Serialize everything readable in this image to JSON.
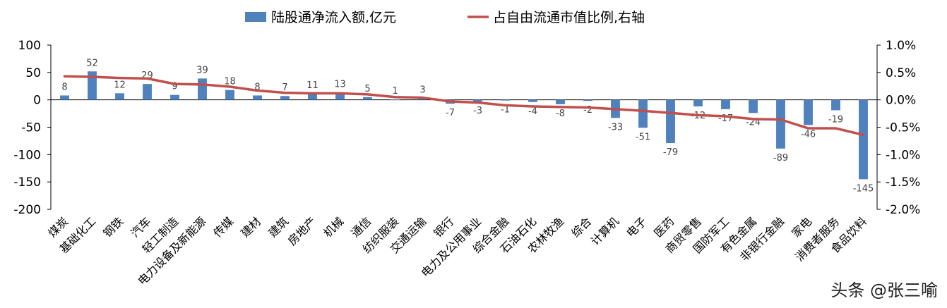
{
  "chart_data": {
    "type": "bar",
    "categories": [
      "煤炭",
      "基础化工",
      "钢铁",
      "汽车",
      "轻工制造",
      "电力设备及新能源",
      "传媒",
      "建材",
      "建筑",
      "房地产",
      "机械",
      "通信",
      "纺织服装",
      "交通运输",
      "银行",
      "电力及公用事业",
      "综合金融",
      "石油石化",
      "农林牧渔",
      "综合",
      "计算机",
      "电子",
      "医药",
      "商贸零售",
      "国防军工",
      "有色金属",
      "非银行金融",
      "家电",
      "消费者服务",
      "食品饮料"
    ],
    "series": [
      {
        "name": "陆股通净流入额,亿元",
        "type": "bar",
        "axis": "left",
        "color": "#4F81BD",
        "values": [
          8,
          52,
          12,
          29,
          9,
          39,
          18,
          8,
          7,
          11,
          13,
          5,
          1,
          3,
          -7,
          -3,
          -1,
          -4,
          -8,
          -2,
          -33,
          -51,
          -79,
          -12,
          -17,
          -24,
          -89,
          -46,
          -19,
          -145
        ]
      },
      {
        "name": "占自由流通市值比例,右轴",
        "type": "line",
        "axis": "right",
        "color": "#C0504D",
        "values": [
          0.43,
          0.42,
          0.4,
          0.39,
          0.29,
          0.28,
          0.24,
          0.17,
          0.13,
          0.12,
          0.12,
          0.1,
          0.05,
          0.04,
          -0.03,
          -0.05,
          -0.1,
          -0.12,
          -0.13,
          -0.14,
          -0.17,
          -0.2,
          -0.24,
          -0.28,
          -0.3,
          -0.35,
          -0.36,
          -0.52,
          -0.52,
          -0.64
        ]
      }
    ],
    "y_left": {
      "min": -200,
      "max": 100,
      "ticks": [
        "100",
        "50",
        "0",
        "-50",
        "-100",
        "-150",
        "-200"
      ]
    },
    "y_right": {
      "min": -2.0,
      "max": 1.0,
      "ticks": [
        "1.0%",
        "0.5%",
        "0.0%",
        "-0.5%",
        "-1.0%",
        "-1.5%",
        "-2.0%"
      ]
    },
    "legend_position": "top",
    "grid": false
  },
  "watermark": "头条 @张三喻"
}
